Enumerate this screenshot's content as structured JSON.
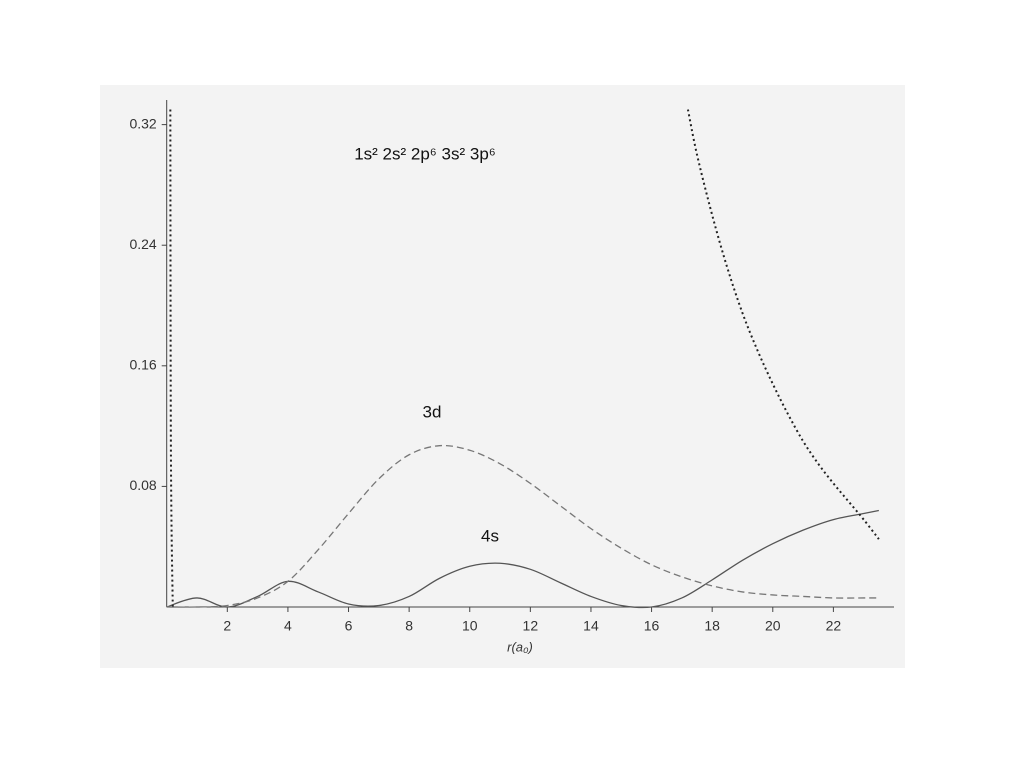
{
  "chart_data": {
    "type": "line",
    "x_label": "r(a₀)",
    "xlim": [
      0,
      24
    ],
    "xticks": [
      2,
      4,
      6,
      8,
      10,
      12,
      14,
      16,
      18,
      20,
      22
    ],
    "ylim": [
      0,
      0.335
    ],
    "yticks": [
      0.08,
      0.16,
      0.24,
      0.32
    ],
    "x": [
      0,
      1,
      2,
      3,
      4,
      5,
      6,
      7,
      8,
      9,
      10,
      11,
      12,
      13,
      14,
      15,
      16,
      17,
      18,
      19,
      20,
      21,
      22,
      23,
      23.5
    ],
    "series": [
      {
        "name": "4s",
        "color": "#555555",
        "style": "solid",
        "values": [
          0,
          0.006,
          0,
          0.007,
          0.017,
          0.01,
          0.002,
          0.001,
          0.007,
          0.019,
          0.027,
          0.029,
          0.025,
          0.016,
          0.007,
          0.001,
          0,
          0.006,
          0.018,
          0.031,
          0.042,
          0.051,
          0.058,
          0.062,
          0.064
        ]
      },
      {
        "name": "3d",
        "color": "#777777",
        "style": "dashed",
        "values": [
          0,
          0,
          0.001,
          0.006,
          0.017,
          0.038,
          0.062,
          0.085,
          0.101,
          0.107,
          0.104,
          0.095,
          0.082,
          0.067,
          0.052,
          0.039,
          0.028,
          0.02,
          0.014,
          0.01,
          0.008,
          0.007,
          0.006,
          0.006,
          0.006
        ]
      },
      {
        "name": "1s² 2s² 2p⁶ 3s² 3p⁶",
        "color": "#222222",
        "style": "dotted",
        "x": [
          0.12,
          0.14,
          0.2,
          8,
          17.2,
          17.5,
          18,
          18.5,
          19,
          19.5,
          20,
          20.5,
          21,
          21.5,
          22,
          22.5,
          23,
          23.5
        ],
        "values": [
          0.33,
          0.1,
          0,
          null,
          0.33,
          0.3,
          0.26,
          0.225,
          0.195,
          0.17,
          0.148,
          0.128,
          0.11,
          0.095,
          0.082,
          0.07,
          0.058,
          0.045
        ]
      }
    ]
  }
}
